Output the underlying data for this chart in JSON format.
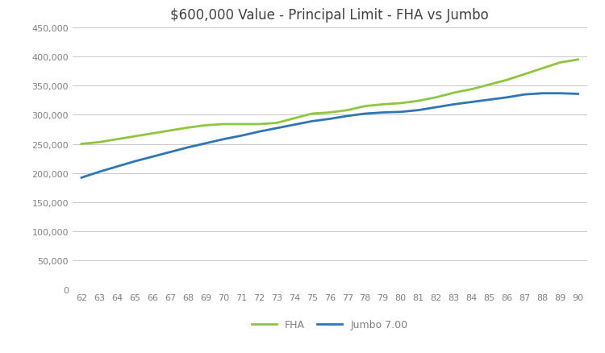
{
  "title": "$600,000 Value - Principal Limit - FHA vs Jumbo",
  "ages": [
    62,
    63,
    64,
    65,
    66,
    67,
    68,
    69,
    70,
    71,
    72,
    73,
    74,
    75,
    76,
    77,
    78,
    79,
    80,
    81,
    82,
    83,
    84,
    85,
    86,
    87,
    88,
    89,
    90
  ],
  "fha": [
    250000,
    253000,
    258000,
    263000,
    268000,
    273000,
    278000,
    282000,
    284000,
    284000,
    284000,
    286000,
    294000,
    302000,
    304000,
    308000,
    315000,
    318000,
    320000,
    324000,
    330000,
    338000,
    344000,
    352000,
    360000,
    370000,
    380000,
    390000,
    395000
  ],
  "jumbo": [
    192000,
    202000,
    211000,
    220000,
    228000,
    236000,
    244000,
    251000,
    258000,
    264000,
    271000,
    277000,
    283000,
    289000,
    293000,
    298000,
    302000,
    304000,
    305000,
    308000,
    313000,
    318000,
    322000,
    326000,
    330000,
    335000,
    337000,
    337000,
    336000
  ],
  "fha_color": "#8DC63F",
  "jumbo_color": "#2E75B6",
  "line_width": 2.0,
  "ylim": [
    0,
    450000
  ],
  "ytick_step": 50000,
  "legend_labels": [
    "FHA",
    "Jumbo 7.00"
  ],
  "background_color": "#FFFFFF",
  "grid_color": "#C8C8C8",
  "tick_color": "#808080",
  "title_color": "#404040",
  "title_fontsize": 12
}
